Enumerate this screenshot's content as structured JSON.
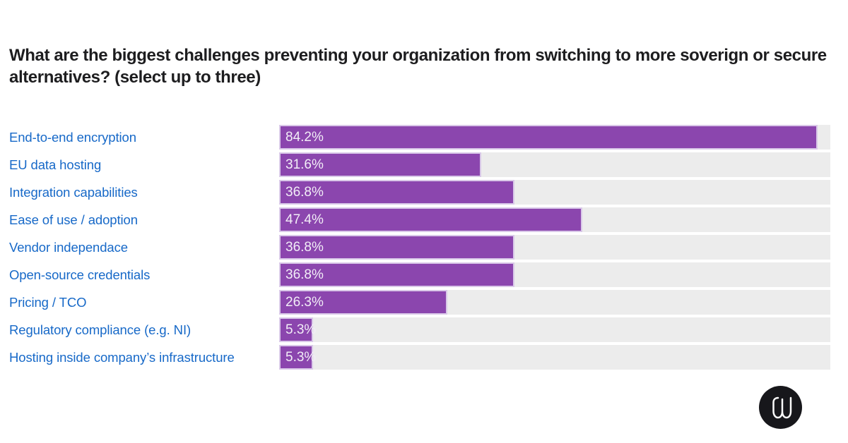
{
  "colors": {
    "background": "#ffffff",
    "title_text": "#1d1d1f",
    "category_label": "#1769c8",
    "bar_fill": "#8b46ae",
    "bar_border": "#d9c8e8",
    "bar_track": "#ececec",
    "value_label": "#f2edf7",
    "logo_bg": "#17171b",
    "logo_glyph": "#fafafa"
  },
  "chart_data": {
    "type": "bar",
    "orientation": "horizontal",
    "title": "What are the biggest challenges preventing your organization from switching to more soverign or secure alternatives? (select up to three)",
    "categories": [
      "End-to-end encryption",
      "EU data hosting",
      "Integration capabilities",
      "Ease of use / adoption",
      "Vendor independace",
      "Open-source credentials",
      "Pricing / TCO",
      "Regulatory compliance (e.g. NI)",
      "Hosting inside company’s infrastructure"
    ],
    "values": [
      84.2,
      31.6,
      36.8,
      47.4,
      36.8,
      36.8,
      26.3,
      5.3,
      5.3
    ],
    "value_labels": [
      "84.2%",
      "31.6%",
      "36.8%",
      "47.4%",
      "36.8%",
      "36.8%",
      "26.3%",
      "5.3%",
      "5.3%"
    ],
    "xlabel": "",
    "ylabel": "",
    "xlim": [
      0,
      86.2
    ],
    "grid": false,
    "legend": false,
    "bar_label_position": "inside-left",
    "category_label_position": "left"
  },
  "logo": {
    "icon": "wire-w-icon",
    "shape": "circle"
  }
}
